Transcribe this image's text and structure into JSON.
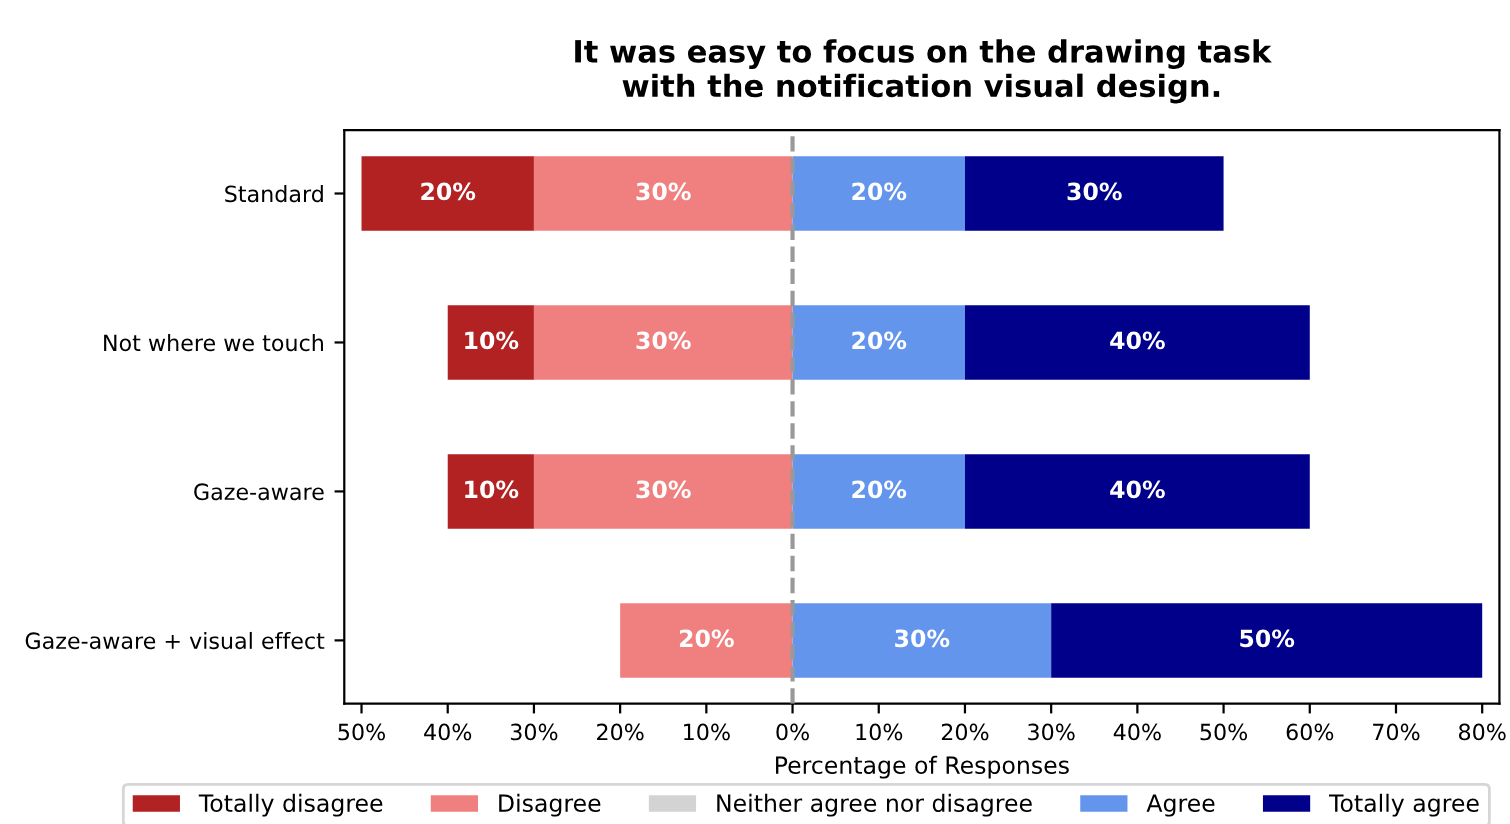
{
  "chart_data": {
    "type": "bar",
    "orientation": "horizontal",
    "title": "It was easy to focus on the drawing task\nwith the notification visual design.",
    "xlabel": "Percentage of Responses",
    "categories": [
      "Standard",
      "Not where we touch",
      "Gaze-aware",
      "Gaze-aware + visual effect"
    ],
    "series": [
      {
        "name": "Totally disagree",
        "color": "#b22222",
        "base": [
          -50,
          -40,
          -40,
          null
        ],
        "values": [
          20,
          10,
          10,
          null
        ],
        "value_labels": [
          "20%",
          "10%",
          "10%",
          null
        ]
      },
      {
        "name": "Disagree",
        "color": "#f08080",
        "base": [
          -30,
          -30,
          -30,
          -20
        ],
        "values": [
          30,
          30,
          30,
          20
        ],
        "value_labels": [
          "30%",
          "30%",
          "30%",
          "20%"
        ]
      },
      {
        "name": "Neither agree nor disagree",
        "color": "#d3d3d3",
        "base": [
          null,
          null,
          null,
          null
        ],
        "values": [
          null,
          null,
          null,
          null
        ],
        "value_labels": [
          null,
          null,
          null,
          null
        ]
      },
      {
        "name": "Agree",
        "color": "#6495ed",
        "base": [
          0,
          0,
          0,
          0
        ],
        "values": [
          20,
          20,
          20,
          30
        ],
        "value_labels": [
          "20%",
          "20%",
          "20%",
          "30%"
        ]
      },
      {
        "name": "Totally agree",
        "color": "#00008b",
        "base": [
          20,
          20,
          20,
          30
        ],
        "values": [
          30,
          40,
          40,
          50
        ],
        "value_labels": [
          "30%",
          "40%",
          "40%",
          "50%"
        ]
      }
    ],
    "xlim": [
      -52,
      82
    ],
    "xticks": [
      {
        "value": -50,
        "label": "50%"
      },
      {
        "value": -40,
        "label": "40%"
      },
      {
        "value": -30,
        "label": "30%"
      },
      {
        "value": -20,
        "label": "20%"
      },
      {
        "value": -10,
        "label": "10%"
      },
      {
        "value": 0,
        "label": "0%"
      },
      {
        "value": 10,
        "label": "10%"
      },
      {
        "value": 20,
        "label": "20%"
      },
      {
        "value": 30,
        "label": "30%"
      },
      {
        "value": 40,
        "label": "40%"
      },
      {
        "value": 50,
        "label": "50%"
      },
      {
        "value": 60,
        "label": "60%"
      },
      {
        "value": 70,
        "label": "70%"
      },
      {
        "value": 80,
        "label": "80%"
      }
    ],
    "ref_lines": [
      {
        "axis": "x",
        "value": 0,
        "color": "#999999",
        "line_style": "dashed"
      }
    ],
    "grid": false,
    "legend": "bottom"
  }
}
